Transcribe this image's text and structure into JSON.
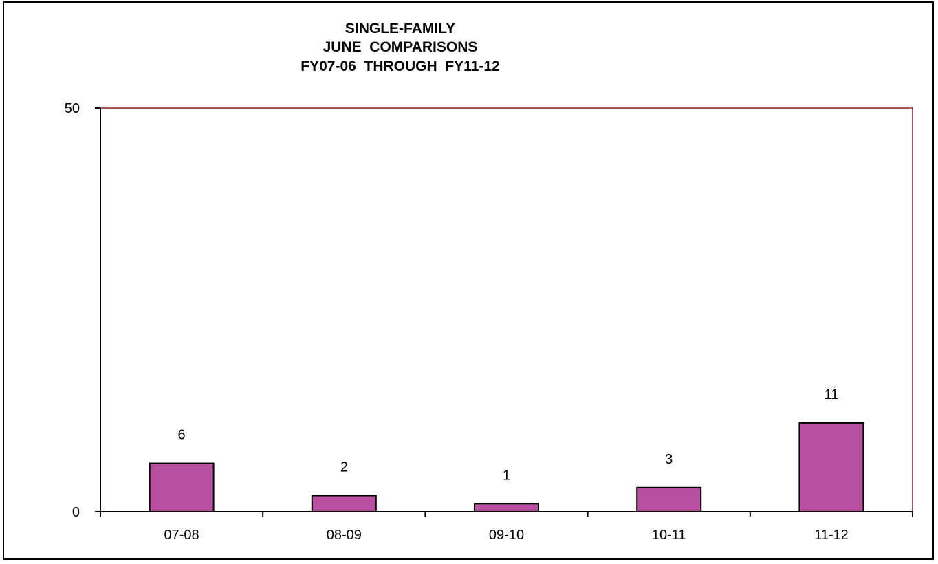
{
  "chart_data": {
    "type": "bar",
    "title_lines": [
      "SINGLE-FAMILY",
      "JUNE  COMPARISONS",
      "FY07-06  THROUGH  FY11-12"
    ],
    "categories": [
      "07-08",
      "08-09",
      "09-10",
      "10-11",
      "11-12"
    ],
    "values": [
      6,
      2,
      1,
      3,
      11
    ],
    "data_labels": [
      "6",
      "2",
      "1",
      "3",
      "11"
    ],
    "ylim": [
      0,
      50
    ],
    "yticks": [
      "0",
      "50"
    ],
    "xlabel": "",
    "ylabel": "",
    "grid": false,
    "legend": "none",
    "bar_color": "#b8509f",
    "plot_border_color": "#8b1a1a"
  }
}
